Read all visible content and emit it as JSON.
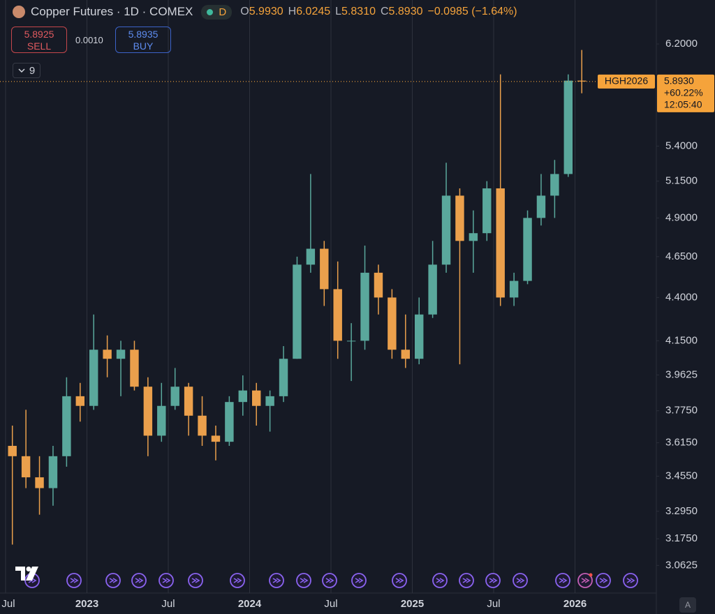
{
  "header": {
    "title": "Copper Futures · 1D · COMEX",
    "interval_badge": "D",
    "ohlc": [
      {
        "key": "O",
        "value": "5.9930"
      },
      {
        "key": "H",
        "value": "6.0245"
      },
      {
        "key": "L",
        "value": "5.8310"
      },
      {
        "key": "C",
        "value": "5.8930"
      }
    ],
    "change": "−0.0985 (−1.64%)",
    "sell": {
      "price": "5.8925",
      "label": "SELL"
    },
    "spread": "0.0010",
    "buy": {
      "price": "5.8935",
      "label": "BUY"
    },
    "indicators_count": "9"
  },
  "corner_button": "A",
  "chart_data": {
    "type": "candlestick",
    "x": [
      "2022-07",
      "2022-08",
      "2022-09",
      "2022-10",
      "2022-11",
      "2022-12",
      "2023-01",
      "2023-02",
      "2023-03",
      "2023-04",
      "2023-05",
      "2023-06",
      "2023-07",
      "2023-08",
      "2023-09",
      "2023-10",
      "2023-11",
      "2023-12",
      "2024-01",
      "2024-02",
      "2024-03",
      "2024-04",
      "2024-05",
      "2024-06",
      "2024-07",
      "2024-08",
      "2024-09",
      "2024-10",
      "2024-11",
      "2024-12",
      "2025-01",
      "2025-02",
      "2025-03",
      "2025-04",
      "2025-05",
      "2025-06",
      "2025-07",
      "2025-08",
      "2025-09",
      "2025-10",
      "2025-11",
      "2025-12",
      "2026-01"
    ],
    "open": [
      3.6,
      3.55,
      3.45,
      3.4,
      3.55,
      3.85,
      3.8,
      4.1,
      4.05,
      4.1,
      3.9,
      3.65,
      3.8,
      3.9,
      3.75,
      3.65,
      3.62,
      3.82,
      3.88,
      3.8,
      3.85,
      4.05,
      4.6,
      4.7,
      4.45,
      4.15,
      4.15,
      4.55,
      4.4,
      4.1,
      4.05,
      4.3,
      4.6,
      5.05,
      4.75,
      4.8,
      5.1,
      4.4,
      4.5,
      4.9,
      5.05,
      5.2,
      5.9
    ],
    "high": [
      3.7,
      3.78,
      3.55,
      3.6,
      3.95,
      3.92,
      4.3,
      4.18,
      4.15,
      4.15,
      3.95,
      3.92,
      4.0,
      3.92,
      3.85,
      3.7,
      3.85,
      3.96,
      3.92,
      3.88,
      4.12,
      4.65,
      5.2,
      4.75,
      4.62,
      4.25,
      4.72,
      4.6,
      4.45,
      4.3,
      4.4,
      4.75,
      5.28,
      5.1,
      4.95,
      5.15,
      5.95,
      4.55,
      4.95,
      5.2,
      5.3,
      5.95,
      6.15
    ],
    "low": [
      3.15,
      3.4,
      3.28,
      3.32,
      3.5,
      3.72,
      3.78,
      3.95,
      3.85,
      3.88,
      3.55,
      3.62,
      3.78,
      3.65,
      3.6,
      3.53,
      3.6,
      3.75,
      3.7,
      3.67,
      3.82,
      4.05,
      4.55,
      4.35,
      4.05,
      3.93,
      4.1,
      4.3,
      4.05,
      4.0,
      4.02,
      4.28,
      4.55,
      4.02,
      4.55,
      4.75,
      4.35,
      4.35,
      4.48,
      4.85,
      4.9,
      5.18,
      5.8
    ],
    "close": [
      3.55,
      3.45,
      3.4,
      3.55,
      3.85,
      3.8,
      4.1,
      4.05,
      4.1,
      3.9,
      3.65,
      3.8,
      3.9,
      3.75,
      3.65,
      3.62,
      3.82,
      3.88,
      3.8,
      3.85,
      4.05,
      4.6,
      4.7,
      4.45,
      4.15,
      4.15,
      4.55,
      4.4,
      4.1,
      4.05,
      4.3,
      4.6,
      5.05,
      4.75,
      4.8,
      5.1,
      4.4,
      4.5,
      4.9,
      5.05,
      5.2,
      5.9,
      5.893
    ],
    "up_color": "#5aa89c",
    "down_color": "#eba04c",
    "xlim": [
      "2022-07",
      "2026-07"
    ],
    "xticks": [
      {
        "value": "2022-07",
        "label": "Jul"
      },
      {
        "value": "2023-01",
        "label": "2023"
      },
      {
        "value": "2023-07",
        "label": "Jul"
      },
      {
        "value": "2024-01",
        "label": "2024"
      },
      {
        "value": "2024-07",
        "label": "Jul"
      },
      {
        "value": "2025-01",
        "label": "2025"
      },
      {
        "value": "2025-07",
        "label": "Jul"
      },
      {
        "value": "2026-01",
        "label": "2026"
      }
    ],
    "ylim": [
      2.95,
      6.58
    ],
    "log_scale": true,
    "yticks": [
      {
        "value": 3.0625,
        "label": "3.0625"
      },
      {
        "value": 3.175,
        "label": "3.1750"
      },
      {
        "value": 3.295,
        "label": "3.2950"
      },
      {
        "value": 3.455,
        "label": "3.4550"
      },
      {
        "value": 3.615,
        "label": "3.6150"
      },
      {
        "value": 3.775,
        "label": "3.7750"
      },
      {
        "value": 3.9625,
        "label": "3.9625"
      },
      {
        "value": 4.15,
        "label": "4.1500"
      },
      {
        "value": 4.4,
        "label": "4.4000"
      },
      {
        "value": 4.65,
        "label": "4.6500"
      },
      {
        "value": 4.9,
        "label": "4.9000"
      },
      {
        "value": 5.15,
        "label": "5.1500"
      },
      {
        "value": 5.4,
        "label": "5.4000"
      },
      {
        "value": 6.2,
        "label": "6.2000"
      }
    ],
    "vertical_grid": true,
    "price_line": {
      "value": 5.893,
      "label": "5.8930",
      "symbol": "HGH2026",
      "change": "+60.22%",
      "countdown": "12:05:40",
      "color": "#f5a33b"
    }
  }
}
